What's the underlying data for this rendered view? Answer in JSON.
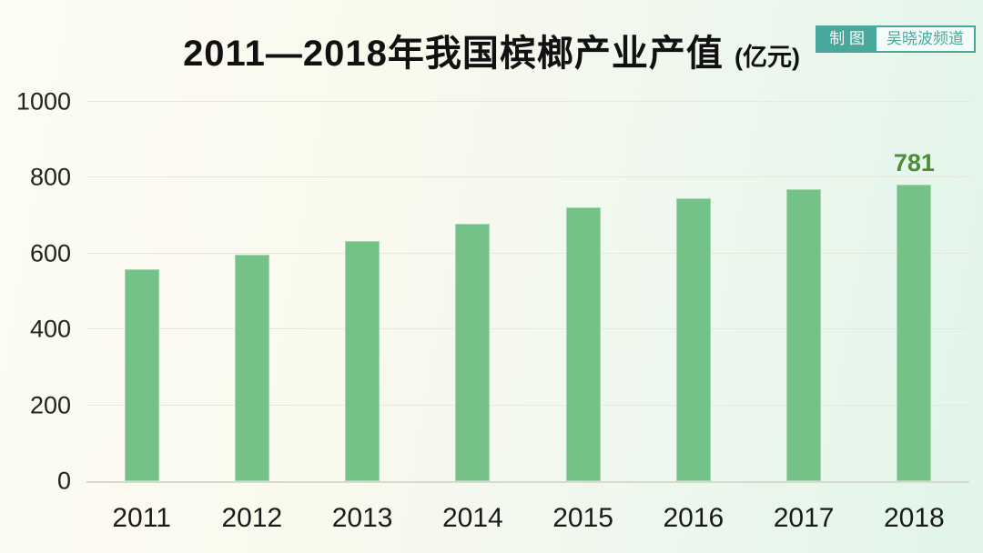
{
  "page": {
    "title": "2011—2018年我国槟榔产业产值",
    "title_unit": "(亿元)"
  },
  "badge": {
    "label_left": "制 图",
    "label_right": "吴晓波频道"
  },
  "colors": {
    "bar": "#74c287",
    "value_label": "#4e8c35",
    "badge_teal": "#4aa79c",
    "background_left": "#fdfcf3",
    "background_right": "#e1f5ea",
    "gridline": "#e7e7db",
    "axis_line": "#d9d9cc",
    "text": "#1a1a1a"
  },
  "chart_data": {
    "type": "bar",
    "title": "2011—2018年我国槟榔产业产值（亿元）",
    "categories": [
      "2011",
      "2012",
      "2013",
      "2014",
      "2015",
      "2016",
      "2017",
      "2018"
    ],
    "values": [
      558,
      596,
      633,
      678,
      722,
      746,
      770,
      781
    ],
    "data_labels": [
      "",
      "",
      "",
      "",
      "",
      "",
      "",
      "781"
    ],
    "xlabel": "",
    "ylabel": "",
    "ylim": [
      0,
      1000
    ],
    "yticks": [
      0,
      200,
      400,
      600,
      800,
      1000
    ],
    "grid": true,
    "legend": false
  }
}
